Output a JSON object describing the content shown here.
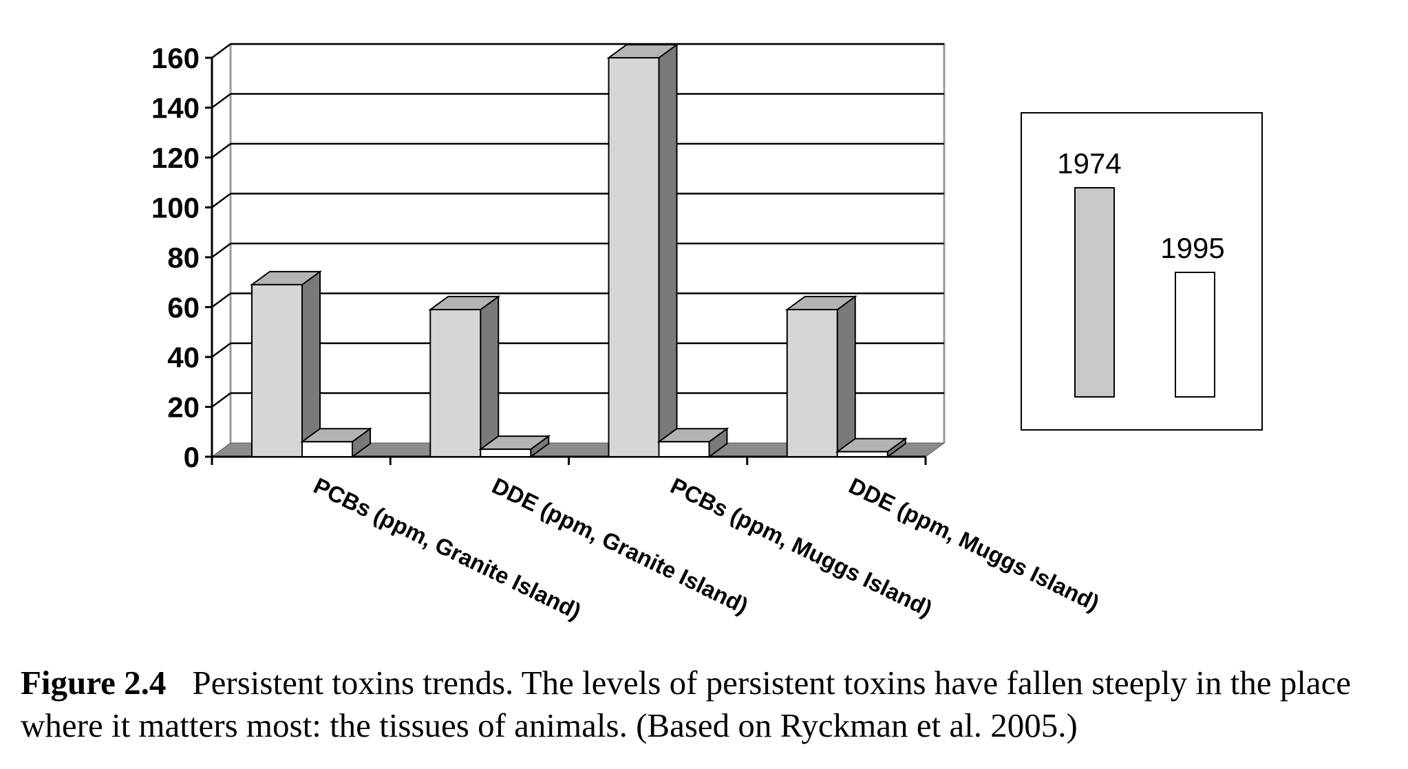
{
  "chart_data": {
    "type": "bar",
    "style": "3d-clustered",
    "categories": [
      "PCBs (ppm, Granite Island)",
      "DDE (ppm, Granite Island)",
      "PCBs (ppm, Muggs Island)",
      "DDE (ppm, Muggs Island)"
    ],
    "series": [
      {
        "name": "1974",
        "values": [
          69,
          59,
          160,
          59
        ],
        "color": "#d6d6d6"
      },
      {
        "name": "1995",
        "values": [
          6,
          3,
          6,
          2
        ],
        "color": "#ffffff"
      }
    ],
    "ylim": [
      0,
      160
    ],
    "yticks": [
      0,
      20,
      40,
      60,
      80,
      100,
      120,
      140,
      160
    ],
    "grid": true,
    "legend_position": "right",
    "colors": {
      "side_face": "#7a7a7a",
      "top_face": "#b4b4b4",
      "floor": "#8c8c8c",
      "legend_1974": "#c8c8c8"
    }
  },
  "caption": {
    "label": "Figure  2.4",
    "text": "Persistent toxins trends. The levels of persistent toxins have fallen steeply in the place where it matters most: the tissues of animals. (Based on Ryckman et al. 2005.)"
  }
}
